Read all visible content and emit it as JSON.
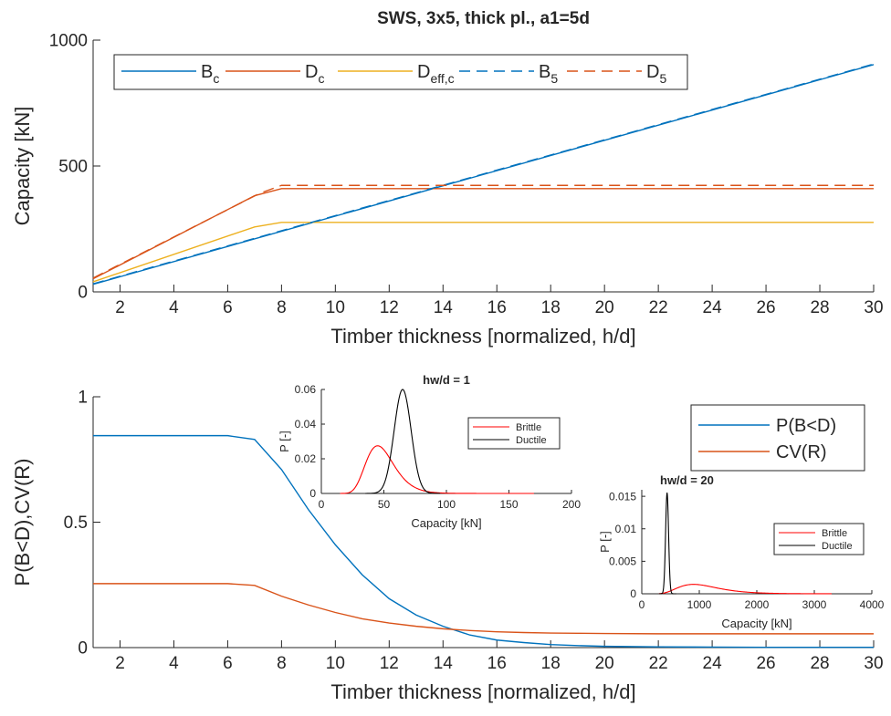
{
  "chart_data": [
    {
      "type": "line",
      "title": "SWS, 3x5, thick pl., a1=5d",
      "xlabel": "Timber thickness [normalized, h/d]",
      "ylabel": "Capacity [kN]",
      "xlim": [
        1,
        30
      ],
      "ylim": [
        0,
        1000
      ],
      "xticks": [
        2,
        4,
        6,
        8,
        10,
        12,
        14,
        16,
        18,
        20,
        22,
        24,
        26,
        28,
        30
      ],
      "yticks": [
        0,
        500,
        1000
      ],
      "grid": false,
      "legend": {
        "placement": "top-left",
        "orientation": "horizontal"
      },
      "series": [
        {
          "name": "B",
          "name_sub": "c",
          "color": "#0072BD",
          "dash": "solid",
          "x": [
            1,
            30
          ],
          "y": [
            30,
            903
          ]
        },
        {
          "name": "D",
          "name_sub": "c",
          "color": "#D95319",
          "dash": "solid",
          "x": [
            1,
            7,
            8,
            30
          ],
          "y": [
            52,
            382,
            410,
            410
          ]
        },
        {
          "name": "D",
          "name_sub": "eff,c",
          "color": "#EDB120",
          "dash": "solid",
          "x": [
            1,
            7,
            8,
            30
          ],
          "y": [
            40,
            258,
            276,
            276
          ]
        },
        {
          "name": "B",
          "name_sub": "5",
          "color": "#0072BD",
          "dash": "dashed",
          "x": [
            1,
            30
          ],
          "y": [
            32,
            905
          ]
        },
        {
          "name": "D",
          "name_sub": "5",
          "color": "#D95319",
          "dash": "dashed",
          "x": [
            1,
            7.2,
            8,
            30
          ],
          "y": [
            55,
            392,
            423,
            423
          ]
        }
      ]
    },
    {
      "type": "line",
      "title": "",
      "xlabel": "Timber thickness [normalized, h/d]",
      "ylabel": "P(B<D),CV(R)",
      "xlim": [
        1,
        30
      ],
      "ylim": [
        0,
        1
      ],
      "xticks": [
        2,
        4,
        6,
        8,
        10,
        12,
        14,
        16,
        18,
        20,
        22,
        24,
        26,
        28,
        30
      ],
      "yticks": [
        0,
        0.5,
        1
      ],
      "ytick_labels": [
        "0",
        "0.5",
        "1"
      ],
      "grid": false,
      "legend": {
        "placement": "right",
        "orientation": "vertical"
      },
      "series": [
        {
          "name": "P(B<D)",
          "color": "#0072BD",
          "dash": "solid",
          "x": [
            1,
            2,
            3,
            4,
            5,
            6,
            7,
            8,
            9,
            10,
            11,
            12,
            13,
            14,
            15,
            16,
            17,
            18,
            19,
            20,
            22,
            24,
            26,
            28,
            30
          ],
          "y": [
            0.845,
            0.845,
            0.845,
            0.845,
            0.845,
            0.845,
            0.83,
            0.71,
            0.55,
            0.41,
            0.29,
            0.195,
            0.13,
            0.085,
            0.05,
            0.03,
            0.02,
            0.012,
            0.008,
            0.005,
            0.003,
            0.002,
            0.001,
            0.001,
            0.001
          ]
        },
        {
          "name": "CV(R)",
          "color": "#D95319",
          "dash": "solid",
          "x": [
            1,
            2,
            3,
            4,
            5,
            6,
            7,
            8,
            9,
            10,
            11,
            12,
            13,
            14,
            15,
            16,
            17,
            18,
            19,
            20,
            22,
            24,
            26,
            28,
            30
          ],
          "y": [
            0.255,
            0.255,
            0.255,
            0.255,
            0.255,
            0.255,
            0.248,
            0.205,
            0.17,
            0.14,
            0.115,
            0.098,
            0.085,
            0.075,
            0.068,
            0.063,
            0.06,
            0.058,
            0.057,
            0.056,
            0.055,
            0.055,
            0.055,
            0.055,
            0.055
          ]
        }
      ]
    },
    {
      "type": "line",
      "title": "hw/d = 1",
      "xlabel": "Capacity [kN]",
      "ylabel": "P [-]",
      "xlim": [
        0,
        200
      ],
      "ylim": [
        0,
        0.06
      ],
      "xticks": [
        0,
        50,
        100,
        150,
        200
      ],
      "yticks": [
        0,
        0.02,
        0.04,
        0.06
      ],
      "ytick_labels": [
        "0",
        "0.02",
        "0.04",
        "0.06"
      ],
      "grid": false,
      "legend": {
        "placement": "top-right",
        "orientation": "vertical"
      },
      "series": [
        {
          "name": "Brittle",
          "color": "#ff0000",
          "dash": "solid",
          "distribution": "lognormal",
          "mode": 45,
          "peak": 0.0275,
          "sigma": 0.25,
          "x_range": [
            15,
            170
          ]
        },
        {
          "name": "Ductile",
          "color": "#000000",
          "dash": "solid",
          "distribution": "normal",
          "mean": 65,
          "peak": 0.06,
          "sd": 6.8,
          "x_range": [
            35,
            95
          ]
        }
      ]
    },
    {
      "type": "line",
      "title": "hw/d = 20",
      "xlabel": "Capacity [kN]",
      "ylabel": "P [-]",
      "xlim": [
        0,
        4000
      ],
      "ylim": [
        0,
        0.016
      ],
      "xticks": [
        0,
        1000,
        2000,
        3000,
        4000
      ],
      "yticks": [
        0,
        0.005,
        0.01,
        0.015
      ],
      "ytick_labels": [
        "0",
        "0.005",
        "0.01",
        "0.015"
      ],
      "grid": false,
      "legend": {
        "placement": "top-right",
        "orientation": "vertical"
      },
      "series": [
        {
          "name": "Brittle",
          "color": "#ff0000",
          "dash": "solid",
          "distribution": "lognormal",
          "mode": 900,
          "peak": 0.00145,
          "sigma": 0.38,
          "x_range": [
            300,
            3300
          ]
        },
        {
          "name": "Ductile",
          "color": "#000000",
          "dash": "solid",
          "distribution": "normal",
          "mean": 440,
          "peak": 0.0155,
          "sd": 26,
          "x_range": [
            300,
            600
          ]
        }
      ]
    }
  ]
}
